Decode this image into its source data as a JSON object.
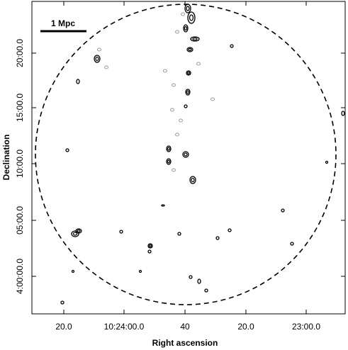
{
  "figure": {
    "scale_bar": "1 Mpc",
    "x_axis": {
      "title": "Right ascension",
      "ticks": [
        "20.0",
        "10:24:00.0",
        "40",
        "20.0",
        "23:00.0"
      ]
    },
    "y_axis": {
      "title": "Declination",
      "ticks": [
        "20:00.0",
        "15:00.0",
        "10:00.0",
        "05:00.0",
        "4:00:00.0"
      ]
    }
  }
}
